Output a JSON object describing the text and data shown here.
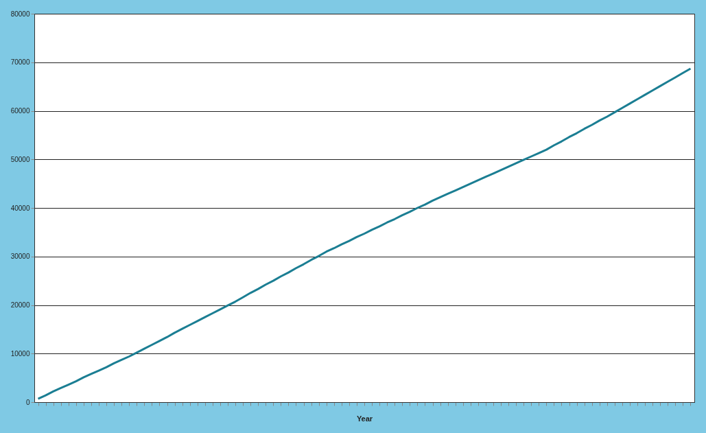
{
  "chart_data": {
    "type": "line",
    "xlabel": "Year",
    "categories": [
      null,
      null,
      null,
      null,
      null,
      null,
      null,
      null,
      null,
      null,
      null,
      null,
      null,
      null,
      null,
      null,
      null,
      null,
      null,
      null,
      null,
      null,
      null,
      null,
      null,
      null,
      null,
      null,
      null,
      null,
      null,
      null,
      null,
      null,
      null,
      null,
      null,
      null,
      null,
      null,
      null,
      null,
      null,
      null,
      null,
      null,
      null,
      null,
      null,
      null,
      null,
      null,
      null,
      null,
      null,
      null,
      null,
      null,
      null,
      null,
      null,
      null,
      null,
      null,
      null,
      null,
      null,
      null,
      null,
      null,
      null,
      null,
      null,
      null,
      null,
      null,
      null,
      null,
      null,
      null,
      null,
      null,
      null,
      null,
      null,
      null,
      null
    ],
    "values": [
      700,
      1400,
      2200,
      2900,
      3600,
      4300,
      5100,
      5800,
      6500,
      7200,
      8000,
      8700,
      9400,
      10200,
      11000,
      11800,
      12600,
      13400,
      14300,
      15100,
      15900,
      16700,
      17500,
      18300,
      19100,
      19900,
      20700,
      21600,
      22500,
      23300,
      24200,
      25000,
      25900,
      26700,
      27600,
      28400,
      29300,
      30100,
      31000,
      31700,
      32500,
      33200,
      34000,
      34700,
      35500,
      36200,
      37000,
      37700,
      38500,
      39200,
      40000,
      40700,
      41500,
      42200,
      42900,
      43600,
      44300,
      45000,
      45700,
      46400,
      47100,
      47800,
      48500,
      49200,
      49900,
      50600,
      51300,
      52000,
      52900,
      53700,
      54600,
      55400,
      56300,
      57100,
      58000,
      58800,
      59700,
      60600,
      61500,
      62400,
      63300,
      64200,
      65100,
      66000,
      66900,
      67800,
      68700
    ],
    "color": "#1b7e93",
    "ylim": [
      0,
      80000
    ],
    "yticks": [
      0,
      10000,
      20000,
      30000,
      40000,
      50000,
      60000,
      70000,
      80000
    ],
    "grid": "y"
  }
}
